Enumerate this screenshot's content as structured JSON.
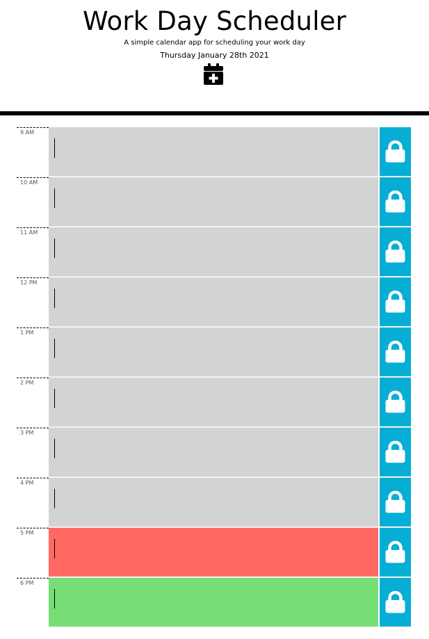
{
  "header": {
    "title": "Work Day Scheduler",
    "subtitle": "A simple calendar app for scheduling your work day",
    "date": "Thursday January 28th 2021",
    "icon": "calendar-plus-icon"
  },
  "colors": {
    "past": "#d3d3d3",
    "present": "#ff6961",
    "future": "#77dd77",
    "save_button": "#06aed5"
  },
  "rows": [
    {
      "hour": "9 AM",
      "status": "past",
      "text": "",
      "save_icon": "lock-icon"
    },
    {
      "hour": "10 AM",
      "status": "past",
      "text": "",
      "save_icon": "lock-icon"
    },
    {
      "hour": "11 AM",
      "status": "past",
      "text": "",
      "save_icon": "lock-icon"
    },
    {
      "hour": "12 PM",
      "status": "past",
      "text": "",
      "save_icon": "lock-icon"
    },
    {
      "hour": "1 PM",
      "status": "past",
      "text": "",
      "save_icon": "lock-icon"
    },
    {
      "hour": "2 PM",
      "status": "past",
      "text": "",
      "save_icon": "lock-icon"
    },
    {
      "hour": "3 PM",
      "status": "past",
      "text": "",
      "save_icon": "lock-icon"
    },
    {
      "hour": "4 PM",
      "status": "past",
      "text": "",
      "save_icon": "lock-icon"
    },
    {
      "hour": "5 PM",
      "status": "present",
      "text": "",
      "save_icon": "lock-icon"
    },
    {
      "hour": "6 PM",
      "status": "future",
      "text": "",
      "save_icon": "lock-icon"
    }
  ]
}
